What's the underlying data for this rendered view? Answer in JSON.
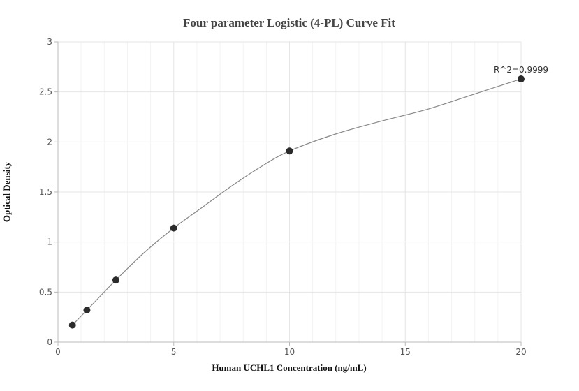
{
  "chart_data": {
    "type": "scatter",
    "title": "Four parameter Logistic (4-PL) Curve Fit",
    "xlabel": "Human UCHL1 Concentration (ng/mL)",
    "ylabel": "Optical Density",
    "xlim": [
      0,
      20
    ],
    "ylim": [
      0,
      3
    ],
    "xticks": [
      0,
      5,
      10,
      15,
      20
    ],
    "yticks": [
      0,
      0.5,
      1,
      1.5,
      2,
      2.5,
      3
    ],
    "grid": true,
    "points": [
      {
        "x": 0.625,
        "y": 0.17
      },
      {
        "x": 1.25,
        "y": 0.32
      },
      {
        "x": 2.5,
        "y": 0.62
      },
      {
        "x": 5,
        "y": 1.14
      },
      {
        "x": 10,
        "y": 1.91
      },
      {
        "x": 20,
        "y": 2.63
      }
    ],
    "curve": [
      {
        "x": 0.625,
        "y": 0.17
      },
      {
        "x": 1.25,
        "y": 0.32
      },
      {
        "x": 2.5,
        "y": 0.62
      },
      {
        "x": 3.75,
        "y": 0.9
      },
      {
        "x": 5,
        "y": 1.14
      },
      {
        "x": 6.25,
        "y": 1.35
      },
      {
        "x": 7.5,
        "y": 1.56
      },
      {
        "x": 8.75,
        "y": 1.75
      },
      {
        "x": 10,
        "y": 1.91
      },
      {
        "x": 12,
        "y": 2.08
      },
      {
        "x": 14,
        "y": 2.21
      },
      {
        "x": 16,
        "y": 2.33
      },
      {
        "x": 18,
        "y": 2.48
      },
      {
        "x": 20,
        "y": 2.63
      }
    ],
    "annotation": "R^2=0.9999",
    "colors": {
      "point": "#2b2b2b",
      "curve": "#888888",
      "grid": "#e6e6e6",
      "minor_grid": "#f3f3f3",
      "axis": "#bbbbbb"
    }
  }
}
